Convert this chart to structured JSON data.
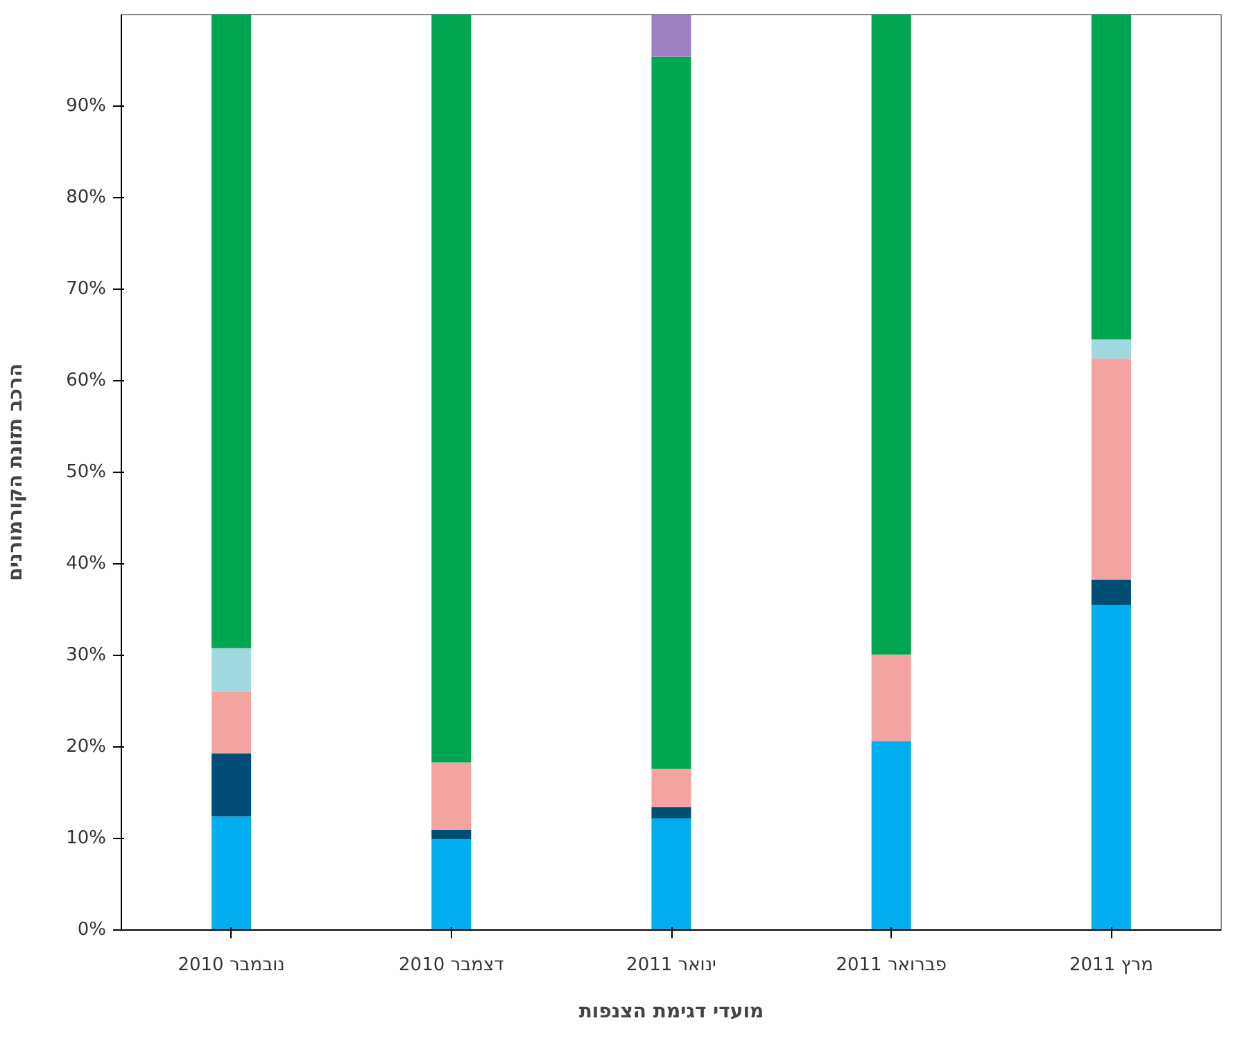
{
  "chart_data": {
    "type": "bar",
    "stacked": true,
    "xlabel": "מועדי דגימת הצנפות",
    "ylabel": "הרכב תזונת הקורמורנים",
    "categories": [
      "נובמבר 2010",
      "דצמבר 2010",
      "ינואר 2011",
      "פברואר 2011",
      "מרץ 2011"
    ],
    "series": [
      {
        "color": "#00aeef",
        "values": [
          12.4,
          9.9,
          12.2,
          20.6,
          35.5
        ]
      },
      {
        "color": "#004e75",
        "values": [
          6.9,
          1.0,
          1.2,
          null,
          2.8
        ]
      },
      {
        "color": "#f4a3a3",
        "values": [
          6.7,
          7.4,
          4.2,
          9.5,
          24.1
        ]
      },
      {
        "color": "#9fd9de",
        "values": [
          4.8,
          null,
          null,
          null,
          2.1
        ]
      },
      {
        "color": "#00a651",
        "values": [
          69.2,
          81.7,
          77.8,
          69.9,
          35.5
        ]
      },
      {
        "color": "#9b7fbf",
        "values": [
          null,
          null,
          4.6,
          null,
          null
        ]
      }
    ],
    "ylim": [
      0,
      100
    ],
    "yticks": [
      {
        "value": 0,
        "label": "0%"
      },
      {
        "value": 10,
        "label": "10%"
      },
      {
        "value": 20,
        "label": "20%"
      },
      {
        "value": 30,
        "label": "30%"
      },
      {
        "value": 40,
        "label": "40%"
      },
      {
        "value": 50,
        "label": "50%"
      },
      {
        "value": 60,
        "label": "60%"
      },
      {
        "value": 70,
        "label": "70%"
      },
      {
        "value": 80,
        "label": "80%"
      },
      {
        "value": 90,
        "label": "90%"
      }
    ],
    "grid": false
  }
}
